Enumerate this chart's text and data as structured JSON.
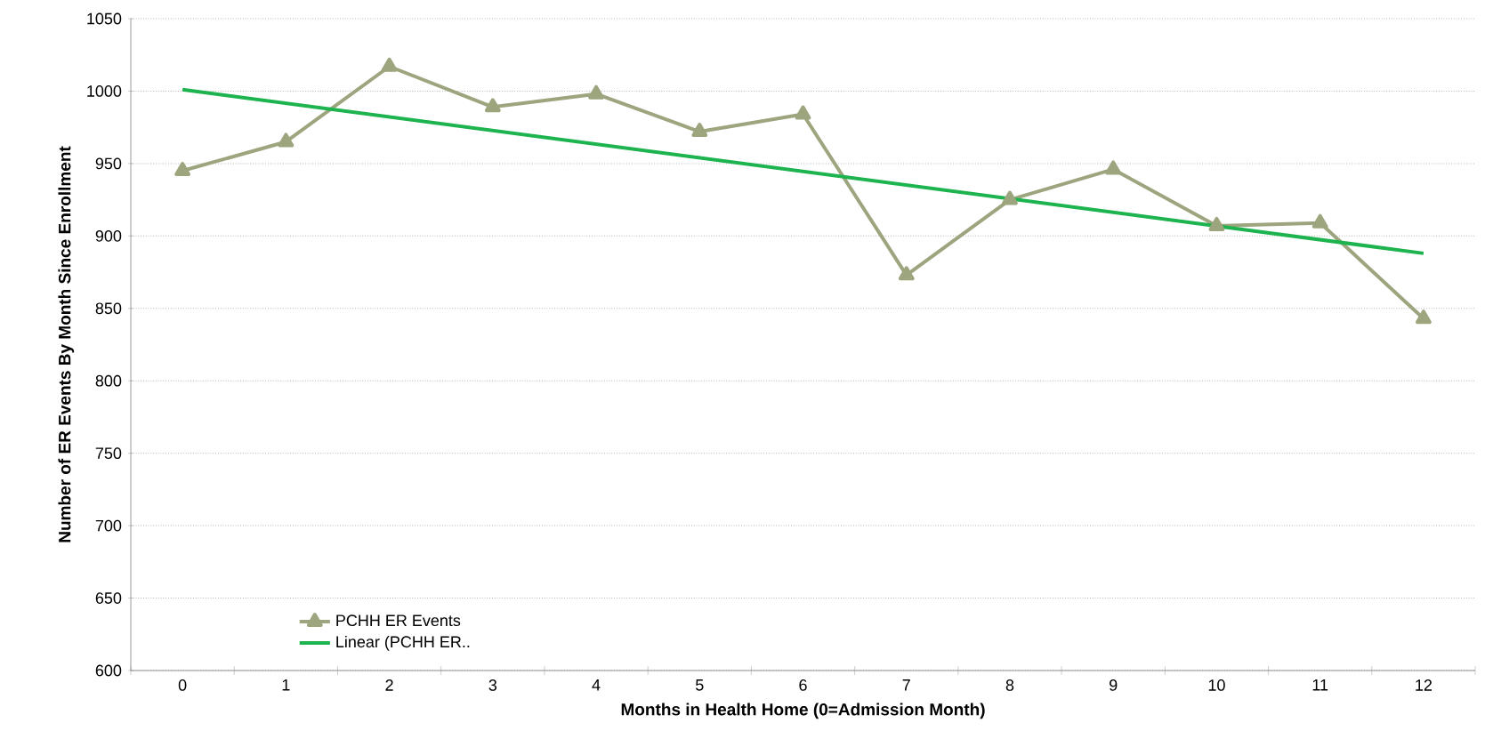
{
  "chart_data": {
    "type": "line",
    "xlabel": "Months in Health Home (0=Admission Month)",
    "ylabel": "Number of ER Events By Month Since Enrollment",
    "categories": [
      "0",
      "1",
      "2",
      "3",
      "4",
      "5",
      "6",
      "7",
      "8",
      "9",
      "10",
      "11",
      "12"
    ],
    "series": [
      {
        "name": "PCHH ER Events",
        "color": "#9ca57e",
        "marker": "triangle",
        "values": [
          945,
          965,
          1017,
          989,
          998,
          972,
          984,
          873,
          925,
          946,
          907,
          909,
          843
        ]
      },
      {
        "name": "Linear (PCHH ER..",
        "color": "#1db34f",
        "marker": "none",
        "values": [
          1001,
          null,
          null,
          null,
          null,
          null,
          null,
          null,
          null,
          null,
          null,
          null,
          888
        ]
      }
    ],
    "ylim": [
      600,
      1050
    ],
    "yticks": [
      600,
      650,
      700,
      750,
      800,
      850,
      900,
      950,
      1000,
      1050
    ],
    "grid": "y",
    "legend": "bottom left",
    "line_style": "solid"
  }
}
